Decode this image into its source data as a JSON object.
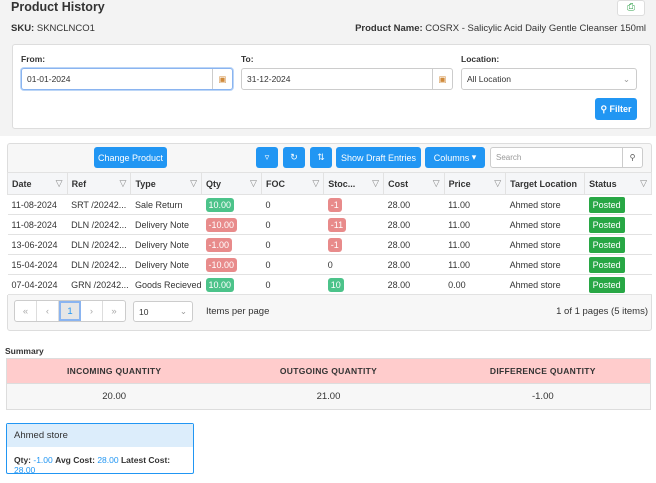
{
  "title": "Product History",
  "sku_label": "SKU:",
  "sku": "SKNCLNCO1",
  "product_name_label": "Product Name:",
  "product_name": "COSRX - Salicylic Acid Daily Gentle Cleanser 150ml",
  "filters": {
    "from_label": "From:",
    "from": "01-01-2024",
    "to_label": "To:",
    "to": "31-12-2024",
    "location_label": "Location:",
    "location": "All Location",
    "filter_button": "Filter"
  },
  "toolbar": {
    "change_product": "Change Product",
    "show_draft": "Show Draft Entries",
    "columns": "Columns",
    "search_placeholder": "Search"
  },
  "columns": [
    "Date",
    "Ref",
    "Type",
    "Qty",
    "FOC",
    "Stoc...",
    "Cost",
    "Price",
    "Target Location",
    "Status"
  ],
  "rows": [
    {
      "date": "11-08-2024",
      "ref": "SRT /20242...",
      "type": "Sale Return",
      "qty": "10.00",
      "foc": "0",
      "stock": "-1",
      "cost": "28.00",
      "price": "11.00",
      "loc": "Ahmed store",
      "status": "Posted"
    },
    {
      "date": "11-08-2024",
      "ref": "DLN /20242...",
      "type": "Delivery Note",
      "qty": "-10.00",
      "foc": "0",
      "stock": "-11",
      "cost": "28.00",
      "price": "11.00",
      "loc": "Ahmed store",
      "status": "Posted"
    },
    {
      "date": "13-06-2024",
      "ref": "DLN /20242...",
      "type": "Delivery Note",
      "qty": "-1.00",
      "foc": "0",
      "stock": "-1",
      "cost": "28.00",
      "price": "11.00",
      "loc": "Ahmed store",
      "status": "Posted"
    },
    {
      "date": "15-04-2024",
      "ref": "DLN /20242...",
      "type": "Delivery Note",
      "qty": "-10.00",
      "foc": "0",
      "stock": "0",
      "cost": "28.00",
      "price": "11.00",
      "loc": "Ahmed store",
      "status": "Posted"
    },
    {
      "date": "07-04-2024",
      "ref": "GRN /20242...",
      "type": "Goods Recieved",
      "qty": "10.00",
      "foc": "0",
      "stock": "10",
      "cost": "28.00",
      "price": "0.00",
      "loc": "Ahmed store",
      "status": "Posted"
    }
  ],
  "pager": {
    "page": "1",
    "page_size": "10",
    "items_per_page": "Items per page",
    "summary": "1 of 1 pages (5 items)"
  },
  "summary": {
    "label": "Summary",
    "headers": [
      "INCOMING QUANTITY",
      "OUTGOING QUANTITY",
      "DIFFERENCE QUANTITY"
    ],
    "values": [
      "20.00",
      "21.00",
      "-1.00"
    ]
  },
  "store": {
    "name": "Ahmed store",
    "qty_label": "Qty:",
    "qty": "-1.00",
    "avg_label": "Avg Cost:",
    "avg": "28.00",
    "latest_label": "Latest Cost:",
    "latest": "28.00"
  }
}
